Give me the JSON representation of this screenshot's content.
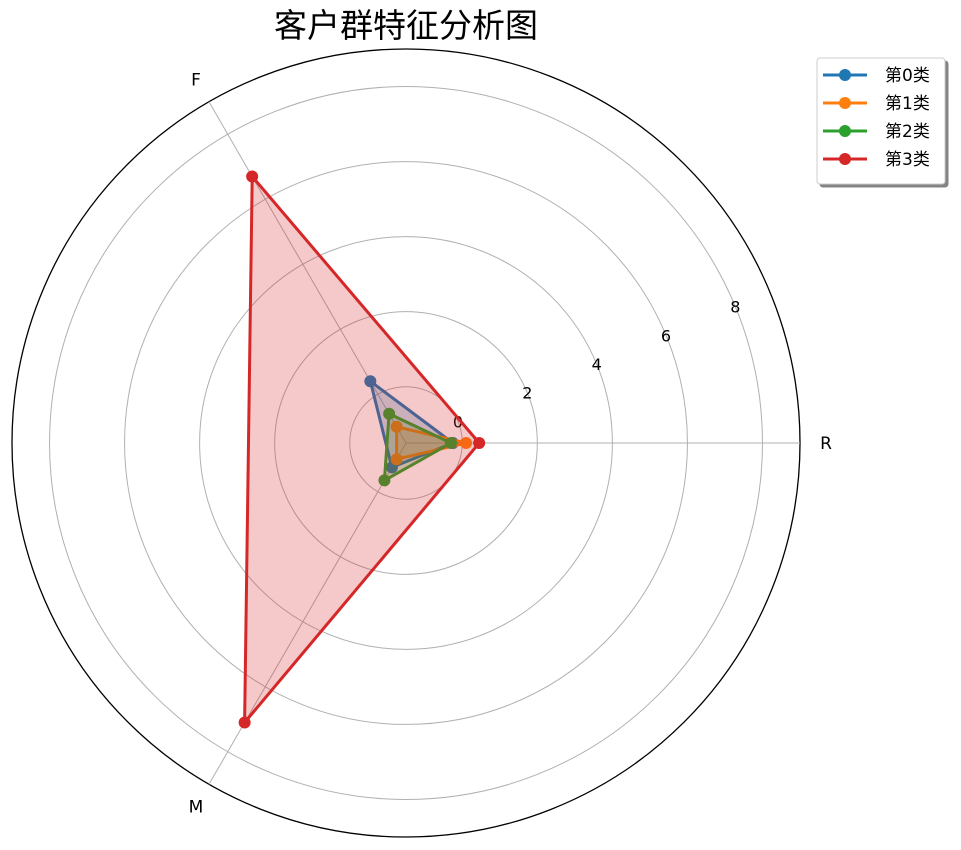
{
  "chart_data": {
    "type": "radar",
    "title": "客户群特征分析图",
    "axes": [
      "R",
      "F",
      "M"
    ],
    "radial_ticks": [
      "0",
      "2",
      "4",
      "6",
      "8"
    ],
    "rlim": [
      -1.5,
      9
    ],
    "grid": true,
    "legend_position": "top-right",
    "colors": [
      "#1f77b4",
      "#ff7f0e",
      "#2ca02c",
      "#d62728"
    ],
    "series": [
      {
        "name": "第0类",
        "values": [
          -0.25,
          0.4,
          -0.75
        ]
      },
      {
        "name": "第1类",
        "values": [
          0.1,
          -1.0,
          -1.0
        ]
      },
      {
        "name": "第2类",
        "values": [
          -0.3,
          -0.6,
          -0.35
        ]
      },
      {
        "name": "第3类",
        "values": [
          0.45,
          6.7,
          7.1
        ]
      }
    ]
  }
}
